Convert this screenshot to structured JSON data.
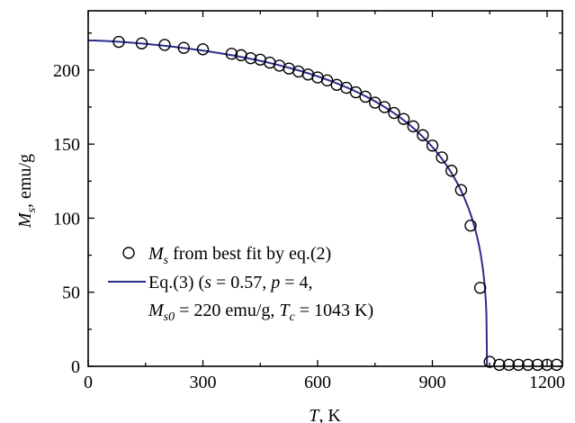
{
  "chart_data": {
    "type": "scatter",
    "title": "",
    "xlabel": {
      "var": "T",
      "sub": "",
      "unit": ", K"
    },
    "ylabel": {
      "var": "M",
      "sub": "s",
      "unit": ", emu/g"
    },
    "xlim": [
      0,
      1240
    ],
    "ylim": [
      0,
      240
    ],
    "xticks": [
      0,
      300,
      600,
      900,
      1200
    ],
    "yticks": [
      0,
      50,
      100,
      150,
      200
    ],
    "grid": false,
    "legend_position": "lower-left",
    "series": [
      {
        "kind": "points",
        "color": "#000000",
        "legend": {
          "var": "M",
          "sub": "s",
          "rest": " from best fit by eq.(2)"
        },
        "x": [
          80,
          140,
          200,
          250,
          300,
          375,
          400,
          425,
          450,
          475,
          500,
          525,
          550,
          575,
          600,
          625,
          650,
          675,
          700,
          725,
          750,
          775,
          800,
          825,
          850,
          875,
          900,
          925,
          950,
          975,
          1000,
          1025,
          1050,
          1075,
          1100,
          1125,
          1150,
          1175,
          1200,
          1225
        ],
        "y": [
          219,
          218,
          217,
          215,
          214,
          211,
          210,
          208,
          207,
          205,
          203,
          201,
          199,
          197,
          195,
          193,
          190,
          188,
          185,
          182,
          178,
          175,
          171,
          167,
          162,
          156,
          149,
          141,
          132,
          119,
          95,
          53,
          3,
          1,
          1,
          1,
          1,
          1,
          1,
          1
        ]
      },
      {
        "kind": "line",
        "color": "#2c2c8c",
        "legend_line1": {
          "a": "Eq.(3) (",
          "s": "s",
          "b": " = 0.57, ",
          "p": "p",
          "c": " = 4,"
        },
        "legend_line2": {
          "m": "M",
          "msub": "s0",
          "a": " = 220 emu/g, ",
          "t": "T",
          "tsub": "c",
          "b": " = 1043 K)"
        },
        "params": {
          "s": 0.57,
          "p": 4,
          "Ms0": 220,
          "Tc": 1043
        }
      }
    ]
  }
}
